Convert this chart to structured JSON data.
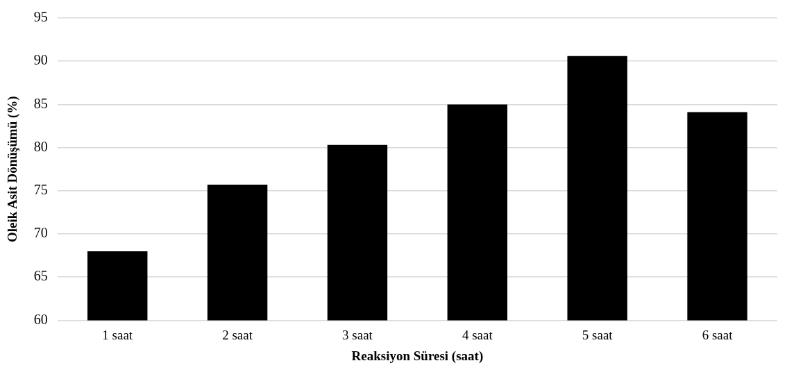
{
  "chart_data": {
    "type": "bar",
    "xlabel": "Reaksiyon Süresi (saat)",
    "ylabel": "Oleik Asit Dönüşümü (%)",
    "categories": [
      "1 saat",
      "2 saat",
      "3 saat",
      "4 saat",
      "5 saat",
      "6 saat"
    ],
    "values": [
      68.0,
      75.7,
      80.3,
      85.0,
      90.6,
      84.1
    ],
    "color": "#000000",
    "ylim": [
      60,
      95
    ],
    "yticks": [
      60,
      65,
      70,
      75,
      80,
      85,
      90,
      95
    ],
    "grid": "y",
    "legend": false
  }
}
